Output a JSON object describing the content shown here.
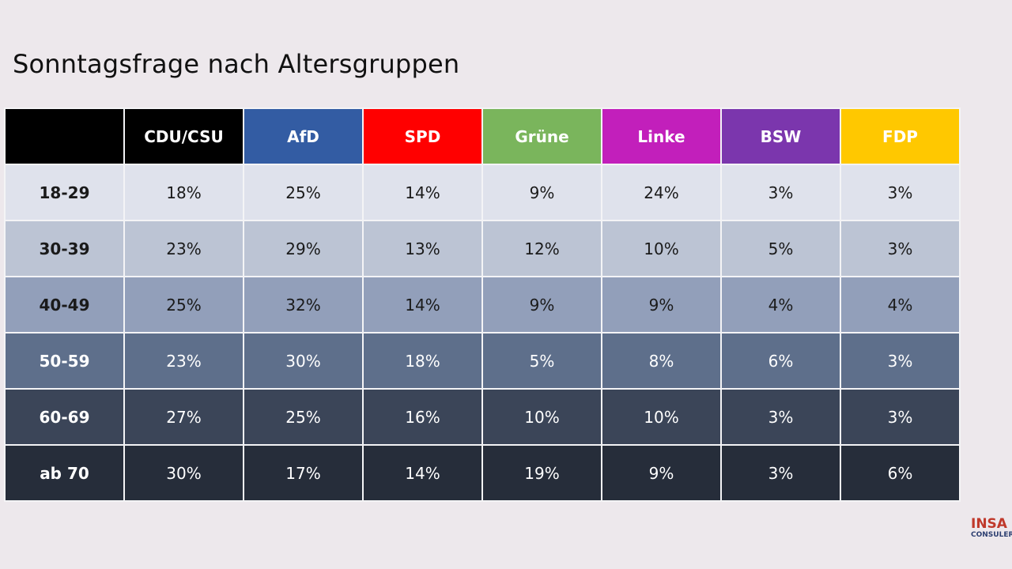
{
  "header": {
    "title": "Sonntagsfrage nach Altersgruppen"
  },
  "table": {
    "columns": [
      "CDU/CSU",
      "AfD",
      "SPD",
      "Grüne",
      "Linke",
      "BSW",
      "FDP"
    ],
    "rows": [
      {
        "label": "18-29",
        "cells": [
          "18%",
          "25%",
          "14%",
          "9%",
          "24%",
          "3%",
          "3%"
        ]
      },
      {
        "label": "30-39",
        "cells": [
          "23%",
          "29%",
          "13%",
          "12%",
          "10%",
          "5%",
          "3%"
        ]
      },
      {
        "label": "40-49",
        "cells": [
          "25%",
          "32%",
          "14%",
          "9%",
          "9%",
          "4%",
          "4%"
        ]
      },
      {
        "label": "50-59",
        "cells": [
          "23%",
          "30%",
          "18%",
          "5%",
          "8%",
          "6%",
          "3%"
        ]
      },
      {
        "label": "60-69",
        "cells": [
          "27%",
          "25%",
          "16%",
          "10%",
          "10%",
          "3%",
          "3%"
        ]
      },
      {
        "label": "ab 70",
        "cells": [
          "30%",
          "17%",
          "14%",
          "19%",
          "9%",
          "3%",
          "6%"
        ]
      }
    ]
  },
  "logo": {
    "name": "INSA",
    "subtitle": "CONSULERE"
  }
}
